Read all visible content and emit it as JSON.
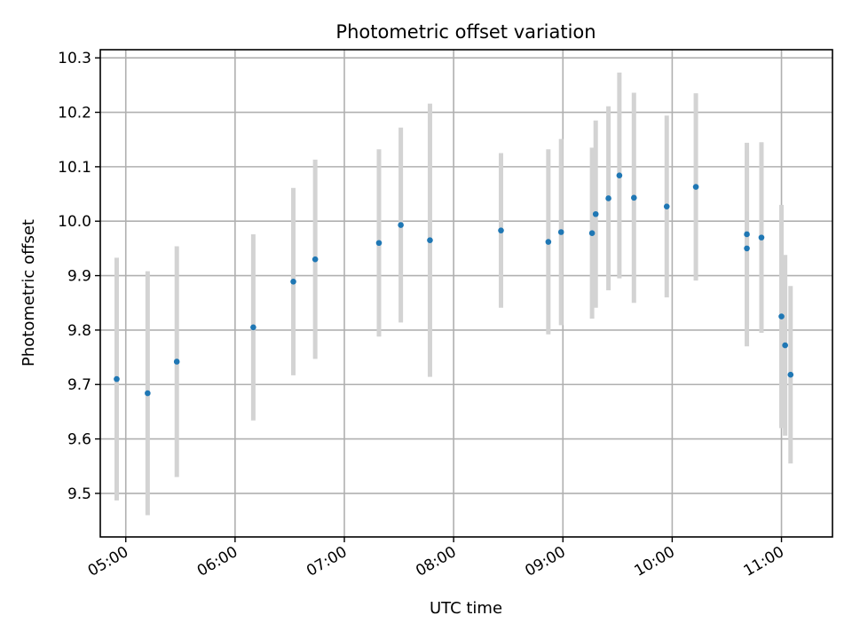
{
  "chart_data": {
    "type": "scatter",
    "title": "Photometric offset variation",
    "xlabel": "UTC time",
    "ylabel": "Photometric offset",
    "grid": true,
    "colors": {
      "point": "#1f77b4",
      "errorbar": "#d3d3d3"
    },
    "xlim": [
      "04:46",
      "11:28"
    ],
    "ylim": [
      9.42,
      10.315
    ],
    "xticks": [
      "05:00",
      "06:00",
      "07:00",
      "08:00",
      "09:00",
      "10:00",
      "11:00"
    ],
    "yticks": [
      "9.5",
      "9.6",
      "9.7",
      "9.8",
      "9.9",
      "10.0",
      "10.1",
      "10.2",
      "10.3"
    ],
    "points": [
      {
        "x": "04:55",
        "y": 9.71,
        "err": 0.223
      },
      {
        "x": "05:12",
        "y": 9.684,
        "err": 0.224
      },
      {
        "x": "05:28",
        "y": 9.742,
        "err": 0.212
      },
      {
        "x": "06:10",
        "y": 9.805,
        "err": 0.171
      },
      {
        "x": "06:32",
        "y": 9.889,
        "err": 0.172
      },
      {
        "x": "06:44",
        "y": 9.93,
        "err": 0.183
      },
      {
        "x": "07:19",
        "y": 9.96,
        "err": 0.172
      },
      {
        "x": "07:31",
        "y": 9.993,
        "err": 0.179
      },
      {
        "x": "07:47",
        "y": 9.965,
        "err": 0.251
      },
      {
        "x": "08:26",
        "y": 9.983,
        "err": 0.142
      },
      {
        "x": "08:52",
        "y": 9.962,
        "err": 0.17
      },
      {
        "x": "08:59",
        "y": 9.98,
        "err": 0.171
      },
      {
        "x": "09:16",
        "y": 9.978,
        "err": 0.157
      },
      {
        "x": "09:18",
        "y": 10.013,
        "err": 0.172
      },
      {
        "x": "09:25",
        "y": 10.042,
        "err": 0.169
      },
      {
        "x": "09:31",
        "y": 10.084,
        "err": 0.189
      },
      {
        "x": "09:39",
        "y": 10.043,
        "err": 0.193
      },
      {
        "x": "09:57",
        "y": 10.027,
        "err": 0.167
      },
      {
        "x": "10:13",
        "y": 10.063,
        "err": 0.172
      },
      {
        "x": "10:41",
        "y": 9.95,
        "err": 0.18
      },
      {
        "x": "10:41",
        "y": 9.976,
        "err": 0.168
      },
      {
        "x": "10:49",
        "y": 9.97,
        "err": 0.175
      },
      {
        "x": "11:00",
        "y": 9.825,
        "err": 0.205
      },
      {
        "x": "11:02",
        "y": 9.772,
        "err": 0.166
      },
      {
        "x": "11:05",
        "y": 9.718,
        "err": 0.163
      }
    ]
  }
}
